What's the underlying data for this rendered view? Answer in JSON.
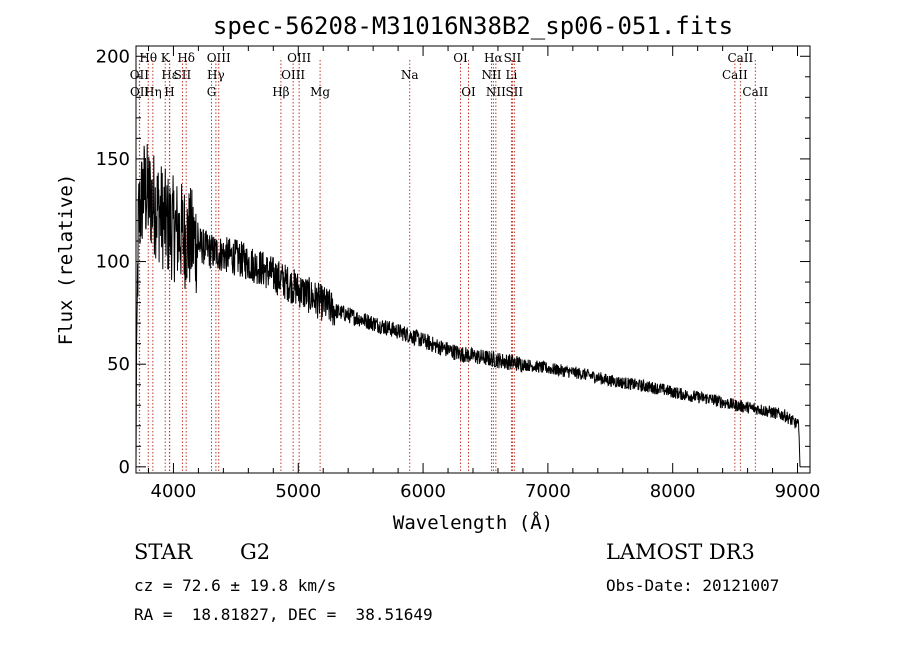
{
  "chart_data": {
    "type": "line",
    "title": "spec-56208-M31016N38B2_sp06-051.fits",
    "xlabel": "Wavelength (Å)",
    "ylabel": "Flux (relative)",
    "xlim": [
      3700,
      9100
    ],
    "ylim": [
      -3,
      205
    ],
    "xticks": [
      4000,
      5000,
      6000,
      7000,
      8000,
      9000
    ],
    "yticks": [
      0,
      50,
      100,
      150,
      200
    ],
    "continuum": [
      [
        3700,
        0
      ],
      [
        3705,
        60
      ],
      [
        3720,
        120
      ],
      [
        3760,
        135
      ],
      [
        3850,
        128
      ],
      [
        3950,
        118
      ],
      [
        4100,
        112
      ],
      [
        4300,
        105
      ],
      [
        4500,
        102
      ],
      [
        4700,
        97
      ],
      [
        4900,
        90
      ],
      [
        5100,
        83
      ],
      [
        5300,
        76
      ],
      [
        5500,
        72
      ],
      [
        5700,
        68
      ],
      [
        5900,
        64
      ],
      [
        6100,
        59
      ],
      [
        6300,
        55
      ],
      [
        6500,
        53
      ],
      [
        6700,
        51
      ],
      [
        6900,
        49
      ],
      [
        7100,
        47
      ],
      [
        7300,
        45
      ],
      [
        7500,
        42
      ],
      [
        7700,
        40
      ],
      [
        7900,
        38
      ],
      [
        8100,
        35
      ],
      [
        8300,
        33
      ],
      [
        8500,
        30
      ],
      [
        8700,
        28
      ],
      [
        8900,
        25
      ],
      [
        9010,
        20
      ],
      [
        9020,
        0
      ]
    ],
    "spectral_lines": [
      {
        "label": "Hθ",
        "wavelength": 3798,
        "row": 1
      },
      {
        "label": "OII",
        "wavelength": 3727,
        "row": 2
      },
      {
        "label": "OII",
        "wavelength": 3729,
        "row": 3
      },
      {
        "label": "K",
        "wavelength": 3934,
        "row": 1
      },
      {
        "label": "Hε",
        "wavelength": 3970,
        "row": 2
      },
      {
        "label": "Hη",
        "wavelength": 3835,
        "row": 3
      },
      {
        "label": "H",
        "wavelength": 3968,
        "row": 3
      },
      {
        "label": "Hδ",
        "wavelength": 4102,
        "row": 1
      },
      {
        "label": "SII",
        "wavelength": 4072,
        "row": 2
      },
      {
        "label": "OIII",
        "wavelength": 4363,
        "row": 1
      },
      {
        "label": "Hγ",
        "wavelength": 4340,
        "row": 2
      },
      {
        "label": "G",
        "wavelength": 4305,
        "row": 3
      },
      {
        "label": "Hβ",
        "wavelength": 4861,
        "row": 3
      },
      {
        "label": "OIII",
        "wavelength": 5007,
        "row": 1
      },
      {
        "label": "OIII",
        "wavelength": 4959,
        "row": 2
      },
      {
        "label": "Mg",
        "wavelength": 5175,
        "row": 3
      },
      {
        "label": "Na",
        "wavelength": 5893,
        "row": 2
      },
      {
        "label": "OI",
        "wavelength": 6300,
        "row": 1
      },
      {
        "label": "OI",
        "wavelength": 6364,
        "row": 3
      },
      {
        "label": "Hα",
        "wavelength": 6563,
        "row": 1
      },
      {
        "label": "NII",
        "wavelength": 6548,
        "row": 2
      },
      {
        "label": "NII",
        "wavelength": 6583,
        "row": 3
      },
      {
        "label": "SII",
        "wavelength": 6716,
        "row": 1
      },
      {
        "label": "Li",
        "wavelength": 6708,
        "row": 2
      },
      {
        "label": "SII",
        "wavelength": 6731,
        "row": 3
      },
      {
        "label": "CaII",
        "wavelength": 8542,
        "row": 1
      },
      {
        "label": "CaII",
        "wavelength": 8498,
        "row": 2
      },
      {
        "label": "CaII",
        "wavelength": 8662,
        "row": 3
      }
    ],
    "line_color": "#c0392b",
    "spectrum_color": "#000000"
  },
  "info": {
    "class": "STAR",
    "subclass": "G2",
    "survey": "LAMOST DR3",
    "cz": "cz = 72.6 ± 19.8 km/s",
    "obs_date": "Obs-Date: 20121007",
    "coords": "RA =  18.81827, DEC =  38.51649"
  }
}
